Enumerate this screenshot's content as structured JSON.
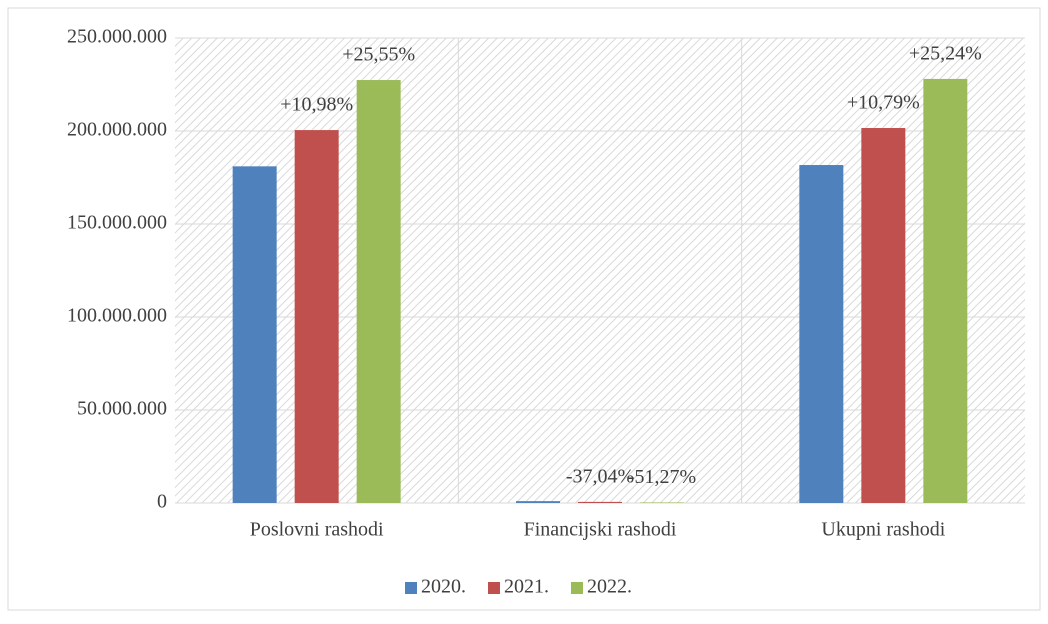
{
  "chart_data": {
    "type": "bar",
    "categories": [
      "Poslovni rashodi",
      "Financijski rashodi",
      "Ukupni rashodi"
    ],
    "series": [
      {
        "name": "2020.",
        "color": "#4f81bd",
        "values": [
          181000000,
          1000000,
          181700000
        ]
      },
      {
        "name": "2021.",
        "color": "#c0504d",
        "values": [
          200500000,
          600000,
          201600000
        ]
      },
      {
        "name": "2022.",
        "color": "#9bbb59",
        "values": [
          227400000,
          300000,
          228000000
        ]
      }
    ],
    "annotations": [
      {
        "text": "+10,98%",
        "series": 1,
        "category": 0
      },
      {
        "text": "+25,55%",
        "series": 2,
        "category": 0
      },
      {
        "text": "-37,04%",
        "series": 1,
        "category": 1
      },
      {
        "text": "-51,27%",
        "series": 2,
        "category": 1
      },
      {
        "text": "+10,79%",
        "series": 1,
        "category": 2
      },
      {
        "text": "+25,24%",
        "series": 2,
        "category": 2
      }
    ],
    "ylim": [
      0,
      250000000
    ],
    "yticks": [
      {
        "value": 0,
        "label": "0"
      },
      {
        "value": 50000000,
        "label": "50.000.000"
      },
      {
        "value": 100000000,
        "label": "100.000.000"
      },
      {
        "value": 150000000,
        "label": "150.000.000"
      },
      {
        "value": 200000000,
        "label": "200.000.000"
      },
      {
        "value": 250000000,
        "label": "250.000.000"
      }
    ],
    "grid": true,
    "legend": "bottom"
  }
}
